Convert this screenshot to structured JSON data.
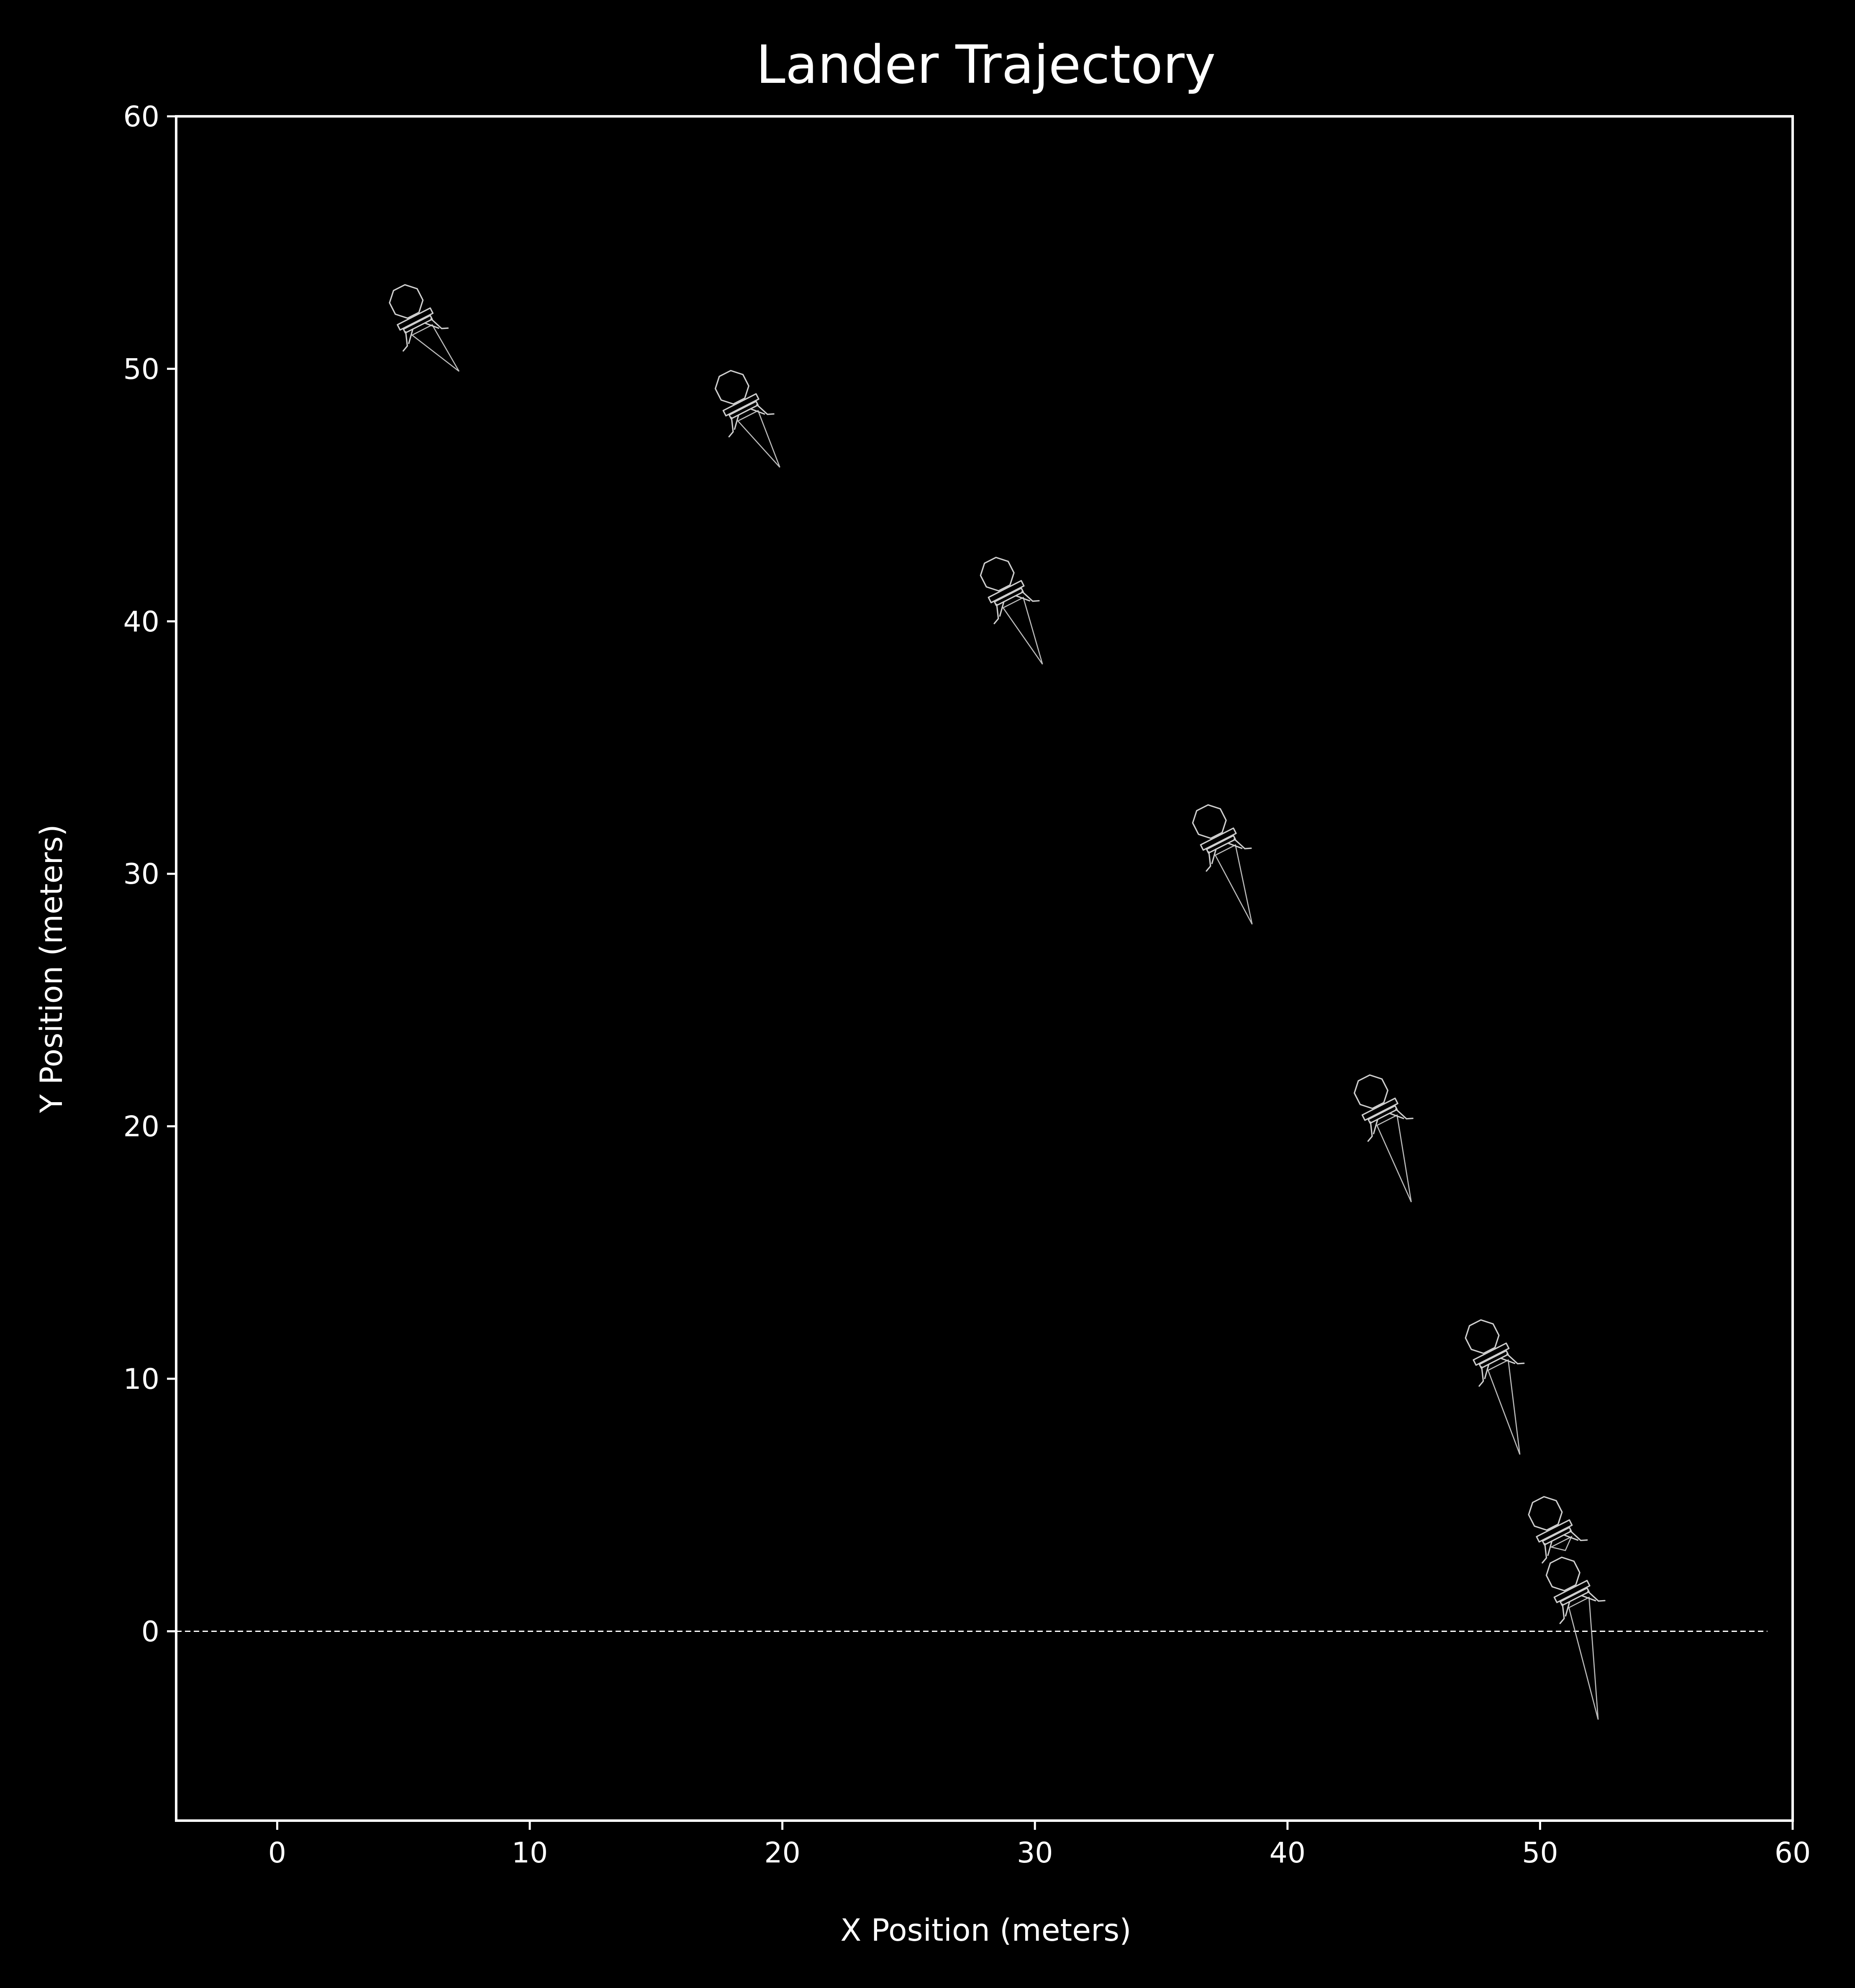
{
  "chart_data": {
    "type": "scatter",
    "title": "Lander Trajectory",
    "xlabel": "X Position (meters)",
    "ylabel": "Y Position (meters)",
    "xlim": [
      -4,
      60
    ],
    "ylim": [
      -7.5,
      60
    ],
    "xticks": [
      0,
      10,
      20,
      30,
      40,
      50,
      60
    ],
    "yticks": [
      0,
      10,
      20,
      30,
      40,
      50,
      60
    ],
    "grid": false,
    "ground_line": {
      "y": 0,
      "x_range": [
        -4,
        59
      ],
      "style": "dashed",
      "color": "#ffffff"
    },
    "marker": "lander-icon",
    "colors": {
      "background": "#000000",
      "axes": "#ffffff",
      "text": "#ffffff",
      "lander": "#cfcfcf",
      "thrust": "#bdbdbd"
    },
    "points": [
      {
        "x": 5.5,
        "y": 51.9,
        "thrust_tip": [
          7.2,
          49.9
        ]
      },
      {
        "x": 18.4,
        "y": 48.5,
        "thrust_tip": [
          19.9,
          46.1
        ]
      },
      {
        "x": 28.9,
        "y": 41.1,
        "thrust_tip": [
          30.3,
          38.3
        ]
      },
      {
        "x": 37.3,
        "y": 31.3,
        "thrust_tip": [
          38.6,
          28.0
        ]
      },
      {
        "x": 43.7,
        "y": 20.6,
        "thrust_tip": [
          44.9,
          17.0
        ]
      },
      {
        "x": 48.1,
        "y": 10.9,
        "thrust_tip": [
          49.2,
          7.0
        ]
      },
      {
        "x": 50.6,
        "y": 3.9,
        "thrust_tip": [
          51.0,
          3.2
        ]
      },
      {
        "x": 51.3,
        "y": 1.5,
        "thrust_tip": [
          52.3,
          -3.5
        ]
      }
    ]
  }
}
